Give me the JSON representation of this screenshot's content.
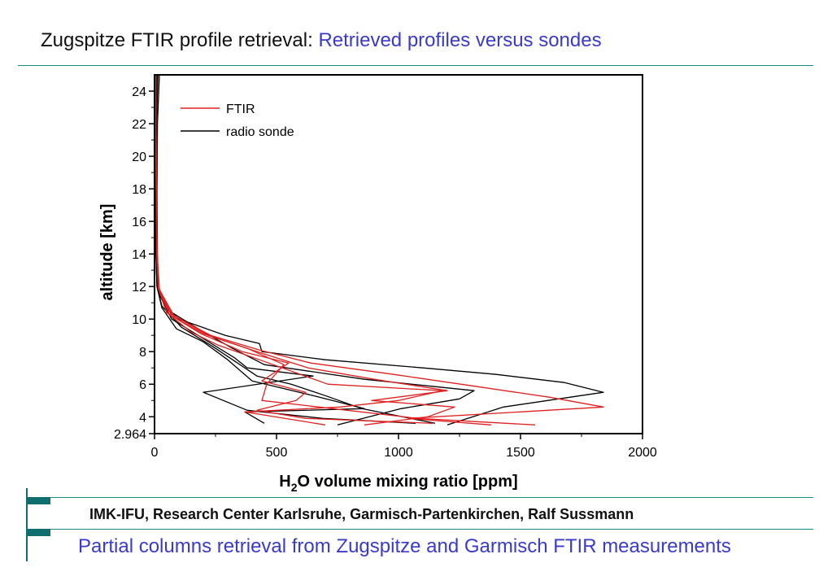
{
  "header": {
    "title_prefix": "Zugspitze FTIR profile retrieval: ",
    "title_highlight": "Retrieved profiles versus sondes"
  },
  "footer": {
    "institute": "IMK-IFU, Research Center Karlsruhe, Garmisch-Partenkirchen, Ralf Sussmann",
    "subtitle": "Partial columns retrieval from Zugspitze and Garmisch FTIR measurements"
  },
  "colors": {
    "ftir": "#e02020",
    "sonde": "#000000",
    "accent_rule": "#1a8a8a",
    "title_highlight": "#3a3acb"
  },
  "chart_data": {
    "type": "line",
    "xlabel_main": "H",
    "xlabel_sub": "2",
    "xlabel_rest": "O volume mixing ratio [ppm]",
    "ylabel": "altitude [km]",
    "xlim": [
      0,
      2000
    ],
    "ylim": [
      2.964,
      25
    ],
    "xticks": [
      0,
      500,
      1000,
      1500,
      2000
    ],
    "xtick_labels": [
      "0",
      "500",
      "1000",
      "1500",
      "2000"
    ],
    "yticks": [
      2.964,
      4,
      6,
      8,
      10,
      12,
      14,
      16,
      18,
      20,
      22,
      24
    ],
    "ytick_labels": [
      "2.964",
      "4",
      "6",
      "8",
      "10",
      "12",
      "14",
      "16",
      "18",
      "20",
      "22",
      "24"
    ],
    "legend_position": "top-left",
    "legend": [
      {
        "name": "FTIR",
        "color": "#e02020"
      },
      {
        "name": "radio sonde",
        "color": "#000000"
      }
    ],
    "series": [
      {
        "name": "FTIR",
        "group": "ftir",
        "points": [
          [
            1560,
            3.5
          ],
          [
            1080,
            3.9
          ],
          [
            790,
            4.4
          ],
          [
            440,
            5.0
          ],
          [
            460,
            6.0
          ],
          [
            530,
            7.2
          ],
          [
            380,
            8.2
          ],
          [
            200,
            9.1
          ],
          [
            70,
            10.2
          ],
          [
            18,
            11.8
          ],
          [
            10,
            14
          ],
          [
            8,
            18
          ],
          [
            6,
            22
          ],
          [
            5,
            25
          ]
        ]
      },
      {
        "name": "FTIR",
        "group": "ftir",
        "points": [
          [
            1380,
            3.5
          ],
          [
            1040,
            3.9
          ],
          [
            1840,
            4.6
          ],
          [
            1620,
            5.2
          ],
          [
            1300,
            5.9
          ],
          [
            980,
            6.6
          ],
          [
            640,
            7.3
          ],
          [
            430,
            8.1
          ],
          [
            230,
            9.0
          ],
          [
            80,
            10.2
          ],
          [
            20,
            11.8
          ],
          [
            11,
            14
          ],
          [
            8,
            18
          ],
          [
            6,
            22
          ],
          [
            5,
            25
          ]
        ]
      },
      {
        "name": "FTIR",
        "group": "ftir",
        "points": [
          [
            860,
            3.5
          ],
          [
            1120,
            4.0
          ],
          [
            1230,
            4.6
          ],
          [
            890,
            5.0
          ],
          [
            1200,
            5.6
          ],
          [
            900,
            6.3
          ],
          [
            630,
            7.0
          ],
          [
            420,
            8.0
          ],
          [
            220,
            9.0
          ],
          [
            70,
            10.3
          ],
          [
            18,
            11.9
          ],
          [
            10,
            14
          ],
          [
            7,
            18
          ],
          [
            6,
            22
          ],
          [
            5,
            25
          ]
        ]
      },
      {
        "name": "FTIR",
        "group": "ftir",
        "points": [
          [
            1140,
            3.6
          ],
          [
            620,
            3.9
          ],
          [
            420,
            4.4
          ],
          [
            580,
            5.0
          ],
          [
            620,
            5.5
          ],
          [
            440,
            6.2
          ],
          [
            550,
            7.3
          ],
          [
            360,
            8.0
          ],
          [
            190,
            9.1
          ],
          [
            60,
            10.3
          ],
          [
            17,
            11.9
          ],
          [
            9,
            14
          ],
          [
            7,
            18
          ],
          [
            5,
            22
          ],
          [
            5,
            25
          ]
        ]
      },
      {
        "name": "FTIR",
        "group": "ftir",
        "points": [
          [
            700,
            3.5
          ],
          [
            370,
            4.3
          ],
          [
            760,
            4.6
          ],
          [
            1000,
            5.0
          ],
          [
            1180,
            5.6
          ],
          [
            710,
            6.0
          ],
          [
            430,
            7.5
          ],
          [
            260,
            8.4
          ],
          [
            150,
            9.2
          ],
          [
            50,
            10.4
          ],
          [
            15,
            11.9
          ],
          [
            9,
            14
          ],
          [
            7,
            18
          ],
          [
            5,
            22
          ],
          [
            5,
            25
          ]
        ]
      },
      {
        "name": "radio sonde",
        "group": "sonde",
        "points": [
          [
            1200,
            3.5
          ],
          [
            1430,
            4.6
          ],
          [
            1840,
            5.5
          ],
          [
            1680,
            6.1
          ],
          [
            1400,
            6.6
          ],
          [
            1100,
            7.0
          ],
          [
            700,
            7.5
          ],
          [
            440,
            8.0
          ],
          [
            430,
            8.5
          ],
          [
            290,
            9.0
          ],
          [
            100,
            10.0
          ],
          [
            40,
            10.8
          ],
          [
            15,
            12
          ],
          [
            12,
            14
          ],
          [
            10,
            18
          ],
          [
            12,
            22
          ],
          [
            20,
            25
          ]
        ]
      },
      {
        "name": "radio sonde",
        "group": "sonde",
        "points": [
          [
            750,
            3.5
          ],
          [
            1010,
            4.5
          ],
          [
            1250,
            5.1
          ],
          [
            1310,
            5.6
          ],
          [
            860,
            6.3
          ],
          [
            450,
            7.2
          ],
          [
            320,
            8.2
          ],
          [
            190,
            9.3
          ],
          [
            50,
            10.6
          ],
          [
            12,
            12
          ],
          [
            8,
            14
          ],
          [
            6,
            18
          ],
          [
            8,
            22
          ],
          [
            14,
            25
          ]
        ]
      },
      {
        "name": "radio sonde",
        "group": "sonde",
        "points": [
          [
            450,
            3.6
          ],
          [
            370,
            4.3
          ],
          [
            860,
            4.5
          ],
          [
            650,
            5.3
          ],
          [
            400,
            6.2
          ],
          [
            300,
            7.5
          ],
          [
            200,
            8.6
          ],
          [
            90,
            9.4
          ],
          [
            30,
            10.7
          ],
          [
            10,
            12
          ],
          [
            6,
            14
          ],
          [
            5,
            18
          ],
          [
            7,
            22
          ],
          [
            12,
            25
          ]
        ]
      },
      {
        "name": "radio sonde",
        "group": "sonde",
        "points": [
          [
            1150,
            3.6
          ],
          [
            850,
            4.5
          ],
          [
            700,
            5.3
          ],
          [
            560,
            6.0
          ],
          [
            420,
            6.5
          ],
          [
            340,
            7.3
          ],
          [
            240,
            8.3
          ],
          [
            110,
            9.5
          ],
          [
            30,
            10.8
          ],
          [
            10,
            12
          ],
          [
            6,
            14
          ],
          [
            5,
            18
          ],
          [
            6,
            22
          ],
          [
            10,
            25
          ]
        ]
      },
      {
        "name": "radio sonde",
        "group": "sonde",
        "points": [
          [
            1070,
            3.6
          ],
          [
            690,
            3.9
          ],
          [
            380,
            4.4
          ],
          [
            200,
            5.5
          ],
          [
            650,
            6.5
          ],
          [
            380,
            7.0
          ],
          [
            330,
            7.6
          ],
          [
            200,
            8.8
          ],
          [
            70,
            10.0
          ],
          [
            20,
            11.5
          ],
          [
            9,
            14
          ],
          [
            6,
            18
          ],
          [
            7,
            22
          ],
          [
            12,
            25
          ]
        ]
      }
    ]
  }
}
